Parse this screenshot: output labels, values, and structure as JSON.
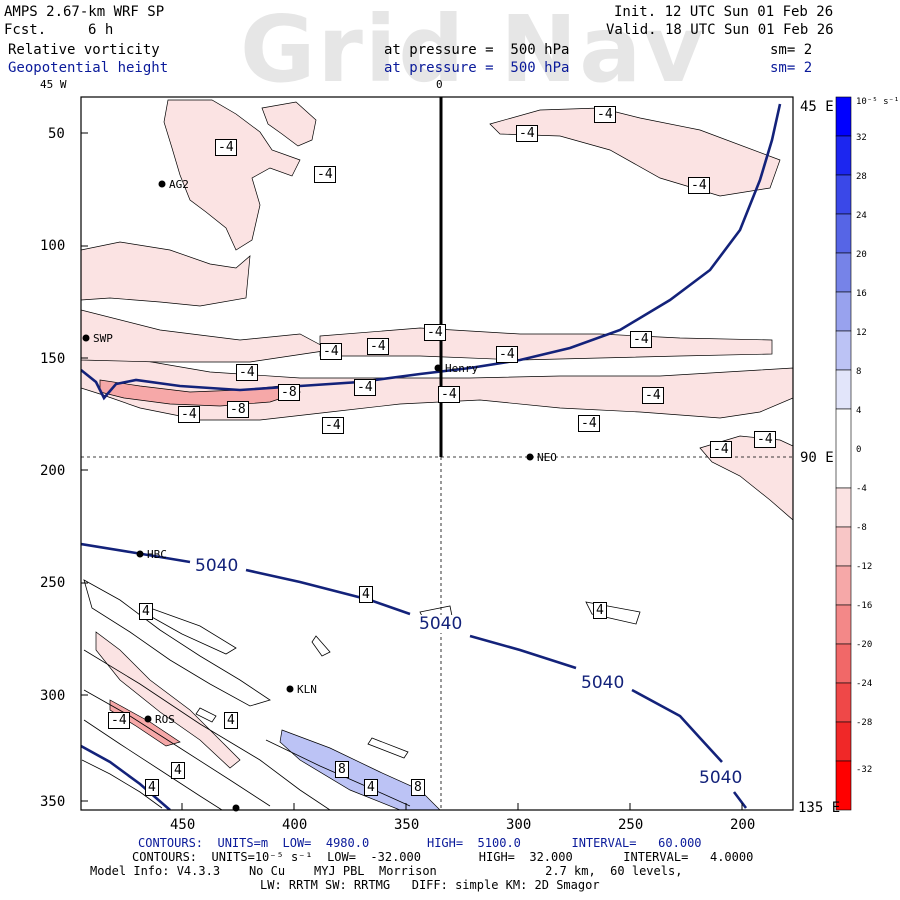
{
  "watermark": "Grid Nav",
  "header": {
    "model": "AMPS 2.67-km WRF SP",
    "fcst_label": "Fcst.",
    "fcst_value": "6 h",
    "init": "Init. 12 UTC Sun 01 Feb 26",
    "valid": "Valid. 18 UTC Sun 01 Feb 26",
    "field1": "Relative vorticity",
    "field2": "Geopotential height",
    "level1": "at pressure =  500 hPa",
    "level2": "at pressure =  500 hPa",
    "sm1": "sm= 2",
    "sm2": "sm= 2"
  },
  "axes": {
    "x_ticks": [
      "450",
      "400",
      "350",
      "300",
      "250",
      "200"
    ],
    "y_ticks": [
      "50",
      "100",
      "150",
      "200",
      "250",
      "300",
      "350"
    ],
    "top_labels": [
      "45 W",
      "0"
    ],
    "right_labels": [
      "45 E",
      "90 E",
      "135 E"
    ]
  },
  "stations": [
    "AG2",
    "SWP",
    "Henry",
    "NEO",
    "HBC",
    "KLN",
    "ROS"
  ],
  "contour_labels": {
    "vort": [
      "-4",
      "-8",
      "4",
      "8"
    ],
    "height": "5040"
  },
  "colorbar": {
    "unit": "10⁻⁵ s⁻¹",
    "ticks": [
      "32",
      "28",
      "24",
      "20",
      "16",
      "12",
      "8",
      "4",
      "0",
      "-4",
      "-8",
      "-12",
      "-16",
      "-20",
      "-24",
      "-28",
      "-32"
    ],
    "colors": [
      "#0000ff",
      "#1c26f0",
      "#3a48e8",
      "#5665e6",
      "#7683e8",
      "#98a2ee",
      "#bcc3f5",
      "#e2e5fa",
      "#ffffff",
      "#fbe3e3",
      "#f8c6c6",
      "#f6a8a8",
      "#f38888",
      "#f16868",
      "#ef4848",
      "#f02828",
      "#ff0000"
    ]
  },
  "footer": {
    "line1": "CONTOURS:  UNITS=m  LOW=  4980.0        HIGH=  5100.0       INTERVAL=   60.000",
    "line2": "CONTOURS:  UNITS=10⁻⁵ s⁻¹  LOW=  -32.000        HIGH=  32.000       INTERVAL=   4.0000",
    "line3": "Model Info: V4.3.3    No Cu    MYJ PBL  Morrison               2.7 km,  60 levels,",
    "line4": "LW: RRTM SW: RRTMG   DIFF: simple KM: 2D Smagor"
  }
}
